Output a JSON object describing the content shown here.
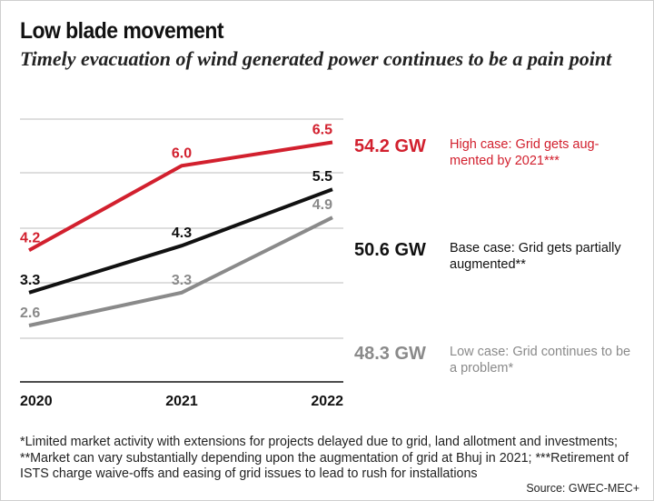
{
  "title": "Low blade movement",
  "subtitle": "Timely evacuation of wind generated power continues to be a pain point",
  "chart_data": {
    "type": "line",
    "x": [
      "2020",
      "2021",
      "2022"
    ],
    "ylim": [
      1.4,
      7.4
    ],
    "grid": true,
    "series": [
      {
        "key": "high",
        "values": [
          4.2,
          6.0,
          6.5
        ],
        "color": "#d2202e",
        "value_labels": [
          "4.2",
          "6.0",
          "6.5"
        ]
      },
      {
        "key": "base",
        "values": [
          3.3,
          4.3,
          5.5
        ],
        "color": "#111111",
        "value_labels": [
          "3.3",
          "4.3",
          "5.5"
        ]
      },
      {
        "key": "low",
        "values": [
          2.6,
          3.3,
          4.9
        ],
        "color": "#8a8a8a",
        "value_labels": [
          "2.6",
          "3.3",
          "4.9"
        ]
      }
    ]
  },
  "cases": [
    {
      "total": "54.2 GW",
      "description": "High case: Grid gets aug-mented by 2021***",
      "color": "#d2202e"
    },
    {
      "total": "50.6 GW",
      "description": "Base case: Grid gets partially augmented**",
      "color": "#111111"
    },
    {
      "total": "48.3 GW",
      "description": "Low case: Grid continues to be a problem*",
      "color": "#8a8a8a"
    }
  ],
  "footnote": "*Limited market activity with extensions for projects delayed due to grid, land allotment and investments; **Market can vary substantially depending upon the augmentation of grid at Bhuj in 2021; ***Retirement of ISTS charge waive-offs and easing of grid issues to lead to rush for installations",
  "source": "Source: GWEC-MEC+"
}
